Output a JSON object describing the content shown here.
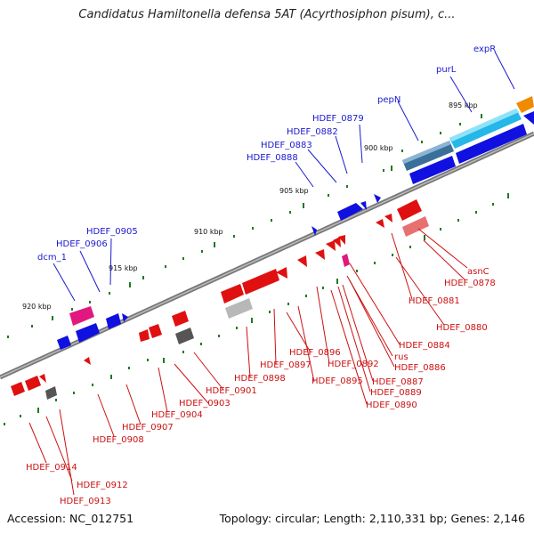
{
  "title": "Candidatus Hamiltonella defensa 5AT (Acyrthosiphon pisum), c...",
  "footer": {
    "accession": "Accession: NC_012751",
    "topology": "Topology: circular; Length: 2,110,331 bp; Genes: 2,146"
  },
  "kbp_labels": [
    "895 kbp",
    "900 kbp",
    "905 kbp",
    "910 kbp",
    "915 kbp",
    "920 kbp"
  ],
  "upper_labels": [
    "expR",
    "purL",
    "pepN",
    "HDEF_0879",
    "HDEF_0882",
    "HDEF_0883",
    "HDEF_0888",
    "HDEF_0905",
    "HDEF_0906",
    "dcm_1"
  ],
  "lower_labels": [
    "asnC",
    "HDEF_0878",
    "HDEF_0881",
    "HDEF_0880",
    "HDEF_0884",
    "rus",
    "HDEF_0886",
    "HDEF_0887",
    "HDEF_0889",
    "HDEF_0890",
    "HDEF_0892",
    "HDEF_0895",
    "HDEF_0896",
    "HDEF_0897",
    "HDEF_0898",
    "HDEF_0901",
    "HDEF_0903",
    "HDEF_0904",
    "HDEF_0907",
    "HDEF_0908",
    "HDEF_0914",
    "HDEF_0912",
    "HDEF_0913"
  ],
  "colors": {
    "forward": "#1a1ad0",
    "reverse": "#e01010",
    "backbone": "#808080",
    "tick": "#1f7a1f"
  }
}
